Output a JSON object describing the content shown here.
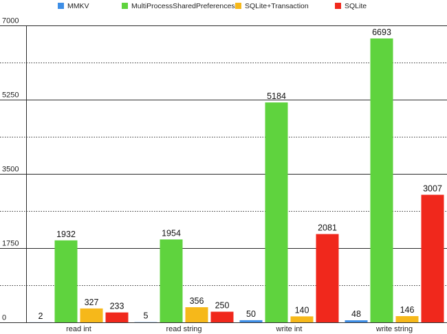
{
  "chart_data": {
    "type": "bar",
    "categories": [
      "read int",
      "read string",
      "write int",
      "write string"
    ],
    "series": [
      {
        "name": "MMKV",
        "values": [
          2,
          5,
          50,
          48
        ],
        "color": "#3e8ee6"
      },
      {
        "name": "MultiProcessSharedPreferences",
        "values": [
          1932,
          1954,
          5184,
          6693
        ],
        "color": "#5fd33e"
      },
      {
        "name": "SQLite+Transaction",
        "values": [
          327,
          356,
          140,
          146
        ],
        "color": "#f6b81a"
      },
      {
        "name": "SQLite",
        "values": [
          233,
          250,
          2081,
          3007
        ],
        "color": "#f0281c"
      }
    ],
    "ylim": [
      0,
      7000
    ],
    "yticks": [
      "0",
      "1750",
      "3500",
      "5250",
      "7000"
    ],
    "minor_gridlines": [
      875,
      2625,
      4375,
      6125
    ],
    "legend_position": "top",
    "grid": true,
    "title": "",
    "xlabel": "",
    "ylabel": ""
  }
}
